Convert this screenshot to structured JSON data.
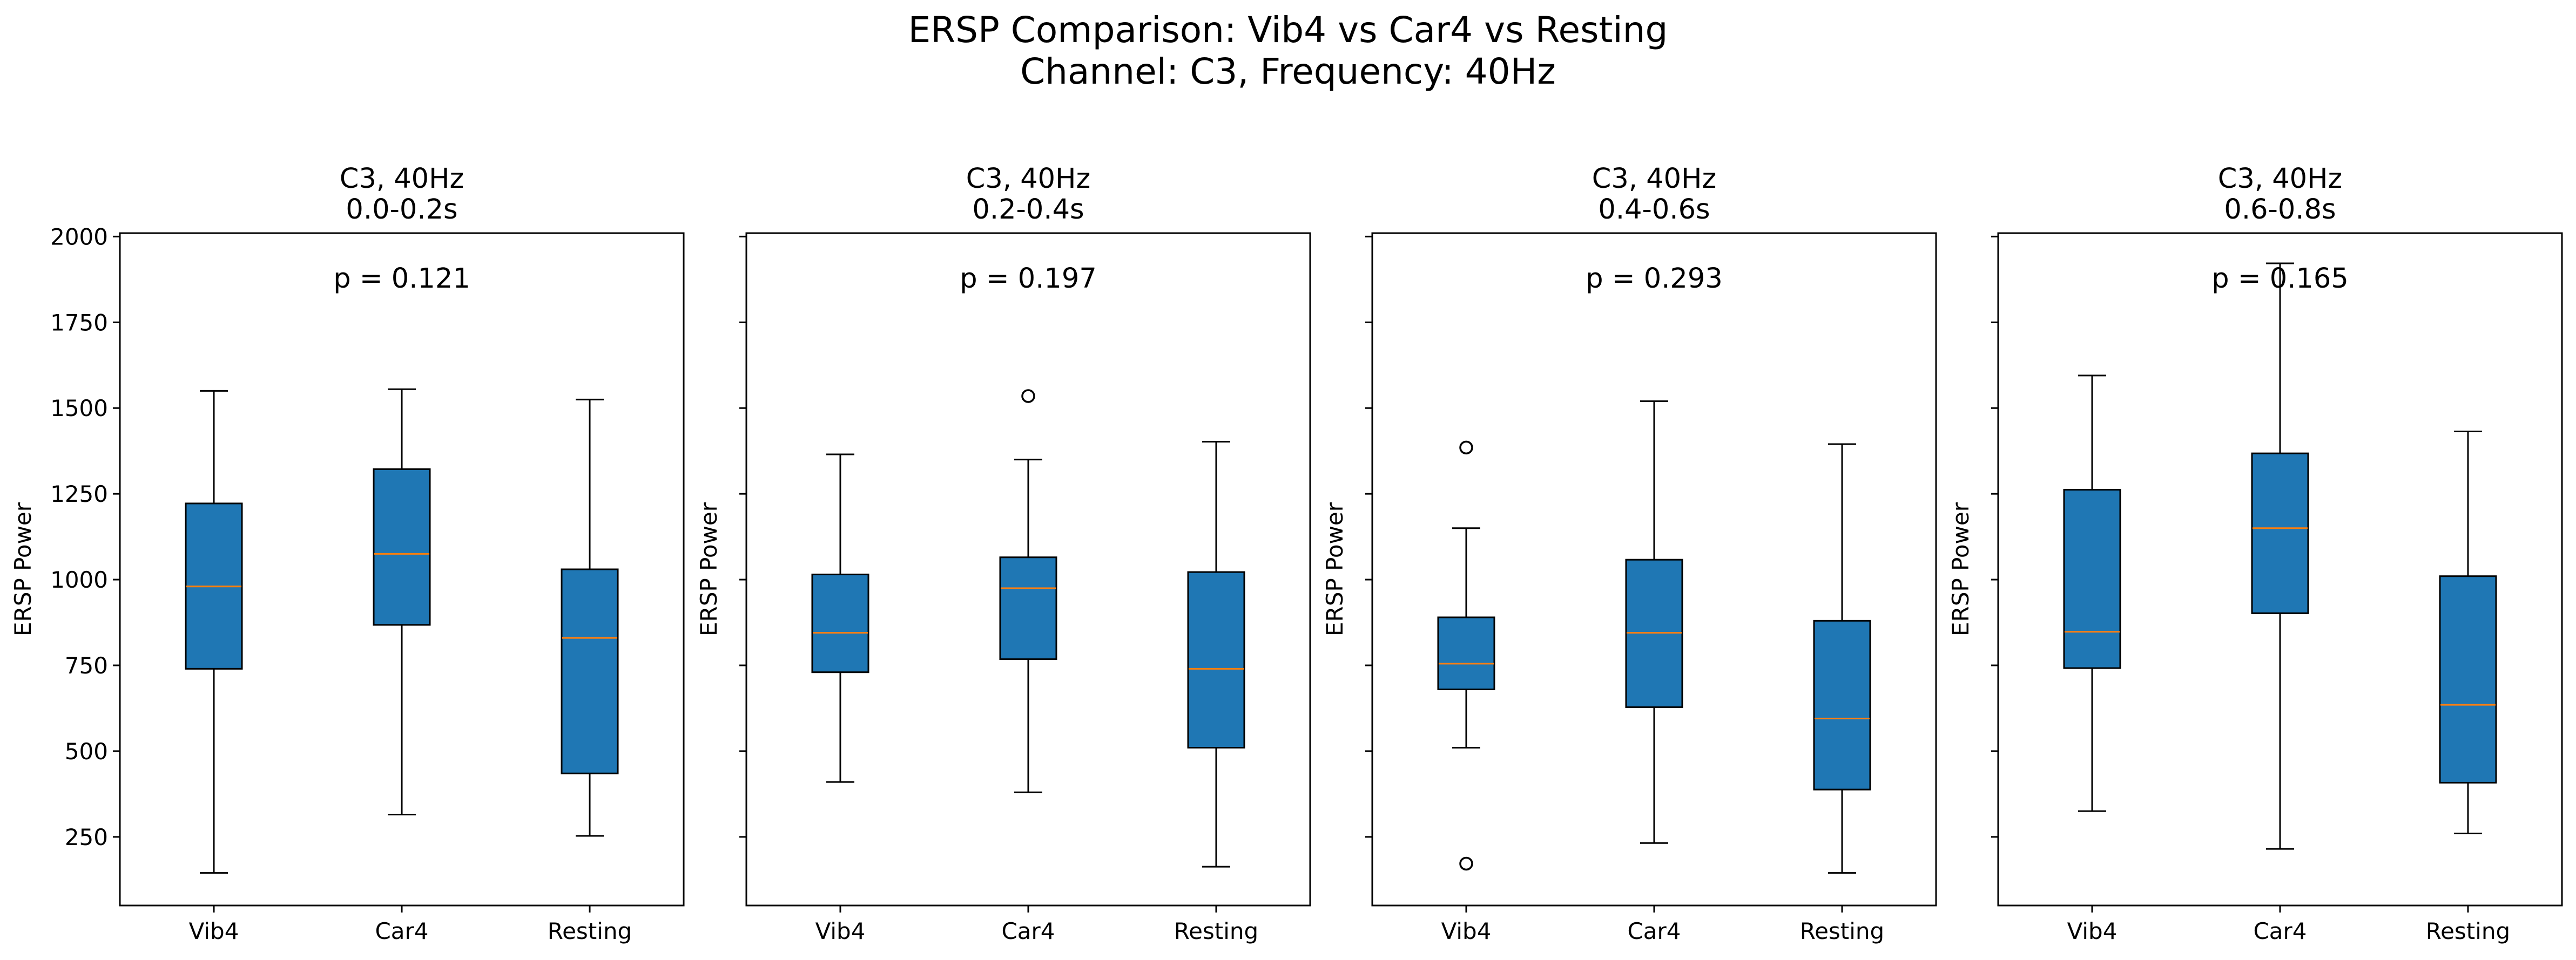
{
  "figure": {
    "title_line1": "ERSP Comparison: Vib4 vs Car4 vs Resting",
    "title_line2": "Channel: C3, Frequency: 40Hz"
  },
  "colors": {
    "box_fill": "#1f77b4",
    "median": "#ff7f0e",
    "edge": "#000000"
  },
  "chart_data": [
    {
      "type": "boxplot",
      "title_line1": "C3, 40Hz",
      "title_line2": "0.0-0.2s",
      "ylabel": "ERSP Power",
      "annotation": "p = 0.121",
      "categories": [
        "Vib4",
        "Car4",
        "Resting"
      ],
      "ylim": [
        50,
        2010
      ],
      "yticks": [
        250,
        500,
        750,
        1000,
        1250,
        1500,
        1750,
        2000
      ],
      "show_ytick_labels": true,
      "boxes": [
        {
          "whislo": 145,
          "q1": 740,
          "med": 980,
          "q3": 1222,
          "whishi": 1550,
          "fliers": []
        },
        {
          "whislo": 315,
          "q1": 868,
          "med": 1075,
          "q3": 1322,
          "whishi": 1555,
          "fliers": []
        },
        {
          "whislo": 253,
          "q1": 435,
          "med": 830,
          "q3": 1030,
          "whishi": 1525,
          "fliers": []
        }
      ]
    },
    {
      "type": "boxplot",
      "title_line1": "C3, 40Hz",
      "title_line2": "0.2-0.4s",
      "ylabel": "ERSP Power",
      "annotation": "p = 0.197",
      "categories": [
        "Vib4",
        "Car4",
        "Resting"
      ],
      "ylim": [
        50,
        2010
      ],
      "yticks": [
        250,
        500,
        750,
        1000,
        1250,
        1500,
        1750,
        2000
      ],
      "show_ytick_labels": false,
      "boxes": [
        {
          "whislo": 410,
          "q1": 730,
          "med": 845,
          "q3": 1015,
          "whishi": 1365,
          "fliers": []
        },
        {
          "whislo": 380,
          "q1": 768,
          "med": 975,
          "q3": 1065,
          "whishi": 1350,
          "fliers": [
            1535
          ]
        },
        {
          "whislo": 163,
          "q1": 510,
          "med": 740,
          "q3": 1022,
          "whishi": 1402,
          "fliers": []
        }
      ]
    },
    {
      "type": "boxplot",
      "title_line1": "C3, 40Hz",
      "title_line2": "0.4-0.6s",
      "ylabel": "ERSP Power",
      "annotation": "p = 0.293",
      "categories": [
        "Vib4",
        "Car4",
        "Resting"
      ],
      "ylim": [
        50,
        2010
      ],
      "yticks": [
        250,
        500,
        750,
        1000,
        1250,
        1500,
        1750,
        2000
      ],
      "show_ytick_labels": false,
      "boxes": [
        {
          "whislo": 510,
          "q1": 680,
          "med": 755,
          "q3": 890,
          "whishi": 1150,
          "fliers": [
            1385,
            172
          ]
        },
        {
          "whislo": 232,
          "q1": 628,
          "med": 845,
          "q3": 1058,
          "whishi": 1520,
          "fliers": []
        },
        {
          "whislo": 145,
          "q1": 388,
          "med": 595,
          "q3": 880,
          "whishi": 1395,
          "fliers": []
        }
      ]
    },
    {
      "type": "boxplot",
      "title_line1": "C3, 40Hz",
      "title_line2": "0.6-0.8s",
      "ylabel": "ERSP Power",
      "annotation": "p = 0.165",
      "categories": [
        "Vib4",
        "Car4",
        "Resting"
      ],
      "ylim": [
        50,
        2010
      ],
      "yticks": [
        250,
        500,
        750,
        1000,
        1250,
        1500,
        1750,
        2000
      ],
      "show_ytick_labels": false,
      "boxes": [
        {
          "whislo": 325,
          "q1": 742,
          "med": 848,
          "q3": 1262,
          "whishi": 1595,
          "fliers": []
        },
        {
          "whislo": 215,
          "q1": 902,
          "med": 1150,
          "q3": 1368,
          "whishi": 1922,
          "fliers": []
        },
        {
          "whislo": 260,
          "q1": 408,
          "med": 635,
          "q3": 1010,
          "whishi": 1432,
          "fliers": []
        }
      ]
    }
  ]
}
